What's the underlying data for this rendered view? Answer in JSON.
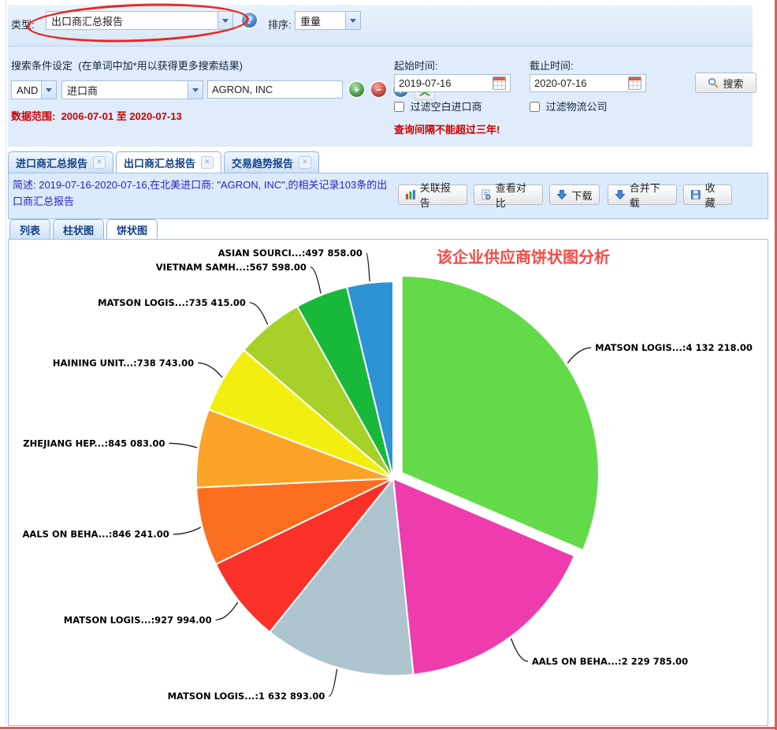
{
  "toolbar": {
    "type_label": "类型:",
    "type_value": "出口商汇总报告",
    "sort_label": "排序:",
    "sort_value": "重量"
  },
  "search": {
    "title": "搜索条件设定",
    "hint": "(在单词中加*用以获得更多搜索结果)",
    "bool_op": "AND",
    "field_value": "进口商",
    "keyword_value": "AGRON, INC",
    "lang_button": "英",
    "data_range_label": "数据范围:",
    "data_range_value": "2006-07-01 至 2020-07-13",
    "start_label": "起始时间:",
    "start_value": "2019-07-16",
    "end_label": "截止时间:",
    "end_value": "2020-07-16",
    "filter_blank_importer": "过滤空白进口商",
    "filter_logistics": "过滤物流公司",
    "warning": "查询间隔不能超过三年!",
    "search_button": "搜索"
  },
  "tabs": [
    {
      "label": "进口商汇总报告"
    },
    {
      "label": "出口商汇总报告"
    },
    {
      "label": "交易趋势报告"
    }
  ],
  "summary": {
    "text": "简述: 2019-07-16-2020-07-16,在北美进口商: \"AGRON, INC\",的相关记录103条的出口商汇总报告",
    "buttons": [
      "关联报告",
      "查看对比",
      "下载",
      "合并下载",
      "收藏"
    ]
  },
  "subtabs": [
    {
      "label": "列表"
    },
    {
      "label": "柱状图"
    },
    {
      "label": "饼状图"
    }
  ],
  "chart_data": {
    "type": "pie",
    "title": "该企业供应商饼状图分析",
    "value_unit": "重量",
    "start_angle_deg": 0,
    "clockwise": true,
    "slices": [
      {
        "label": "MATSON LOGIS...",
        "value": 4132218.0,
        "display": "MATSON LOGIS...:4 132 218.00",
        "color": "#63DB49",
        "exploded": true
      },
      {
        "label": "AALS ON BEHA...",
        "value": 2229785.0,
        "display": "AALS ON BEHA...:2 229 785.00",
        "color": "#EE3CAE",
        "exploded": false
      },
      {
        "label": "MATSON LOGIS...",
        "value": 1632893.0,
        "display": "MATSON LOGIS...:1 632 893.00",
        "color": "#AEC4CF",
        "exploded": false
      },
      {
        "label": "MATSON LOGIS...",
        "value": 927994.0,
        "display": "MATSON LOGIS...:927 994.00",
        "color": "#F93128",
        "exploded": false
      },
      {
        "label": "AALS ON BEHA...",
        "value": 846241.0,
        "display": "AALS ON BEHA...:846 241.00",
        "color": "#FB6E1F",
        "exploded": false
      },
      {
        "label": "ZHEJIANG HEP...",
        "value": 845083.0,
        "display": "ZHEJIANG HEP...:845 083.00",
        "color": "#FCA428",
        "exploded": false
      },
      {
        "label": "HAINING UNIT...",
        "value": 738743.0,
        "display": "HAINING UNIT...:738 743.00",
        "color": "#F2EF10",
        "exploded": false
      },
      {
        "label": "MATSON LOGIS...",
        "value": 735415.0,
        "display": "MATSON LOGIS...:735 415.00",
        "color": "#A7D028",
        "exploded": false
      },
      {
        "label": "VIETNAM SAMH...",
        "value": 567598.0,
        "display": "VIETNAM SAMH...:567 598.00",
        "color": "#18B93A",
        "exploded": false
      },
      {
        "label": "ASIAN SOURCI...",
        "value": 497858.0,
        "display": "ASIAN SOURCI...:497 858.00",
        "color": "#2E93D4",
        "exploded": false
      }
    ]
  }
}
